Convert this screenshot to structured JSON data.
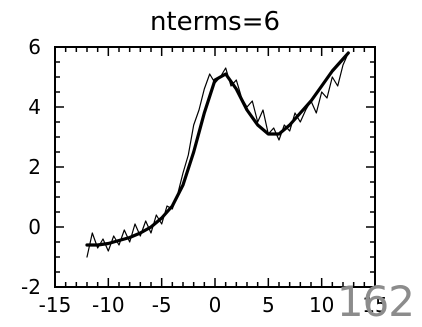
{
  "chart_data": {
    "type": "line",
    "title": "nterms=6",
    "xlabel": "",
    "ylabel": "",
    "xlim": [
      -15,
      15
    ],
    "ylim": [
      -2,
      6
    ],
    "xticks": [
      -15,
      -10,
      -5,
      0,
      5,
      10,
      15
    ],
    "yticks": [
      -2,
      0,
      2,
      4,
      6
    ],
    "grid": false,
    "series": [
      {
        "style": "thin",
        "x": [
          -12.0,
          -11.5,
          -11.0,
          -10.5,
          -10.0,
          -9.5,
          -9.0,
          -8.5,
          -8.0,
          -7.5,
          -7.0,
          -6.5,
          -6.0,
          -5.5,
          -5.0,
          -4.5,
          -4.0,
          -3.5,
          -3.0,
          -2.5,
          -2.0,
          -1.5,
          -1.0,
          -0.5,
          0.0,
          0.5,
          1.0,
          1.5,
          2.0,
          2.5,
          3.0,
          3.5,
          4.0,
          4.5,
          5.0,
          5.5,
          6.0,
          6.5,
          7.0,
          7.5,
          8.0,
          8.5,
          9.0,
          9.5,
          10.0,
          10.5,
          11.0,
          11.5,
          12.0,
          12.5
        ],
        "y": [
          -1.0,
          -0.2,
          -0.7,
          -0.4,
          -0.8,
          -0.3,
          -0.6,
          -0.1,
          -0.5,
          0.1,
          -0.3,
          0.2,
          -0.2,
          0.4,
          0.1,
          0.7,
          0.6,
          1.1,
          1.8,
          2.4,
          3.4,
          3.9,
          4.6,
          5.1,
          4.8,
          5.0,
          5.3,
          4.7,
          4.9,
          4.3,
          4.0,
          4.2,
          3.5,
          3.9,
          3.1,
          3.3,
          2.9,
          3.4,
          3.2,
          3.8,
          3.5,
          3.9,
          4.2,
          3.8,
          4.5,
          4.3,
          5.0,
          4.7,
          5.4,
          5.8
        ]
      },
      {
        "style": "thick",
        "x": [
          -12.0,
          -11.0,
          -10.0,
          -9.0,
          -8.0,
          -7.0,
          -6.0,
          -5.0,
          -4.0,
          -3.0,
          -2.0,
          -1.0,
          0.0,
          1.0,
          2.0,
          3.0,
          4.0,
          5.0,
          6.0,
          7.0,
          8.0,
          9.0,
          10.0,
          11.0,
          12.0,
          12.5
        ],
        "y": [
          -0.6,
          -0.6,
          -0.55,
          -0.45,
          -0.35,
          -0.2,
          0.0,
          0.3,
          0.7,
          1.4,
          2.5,
          3.8,
          4.9,
          5.1,
          4.6,
          3.9,
          3.4,
          3.1,
          3.1,
          3.4,
          3.8,
          4.2,
          4.7,
          5.2,
          5.6,
          5.8
        ]
      }
    ]
  },
  "page_number": "162"
}
